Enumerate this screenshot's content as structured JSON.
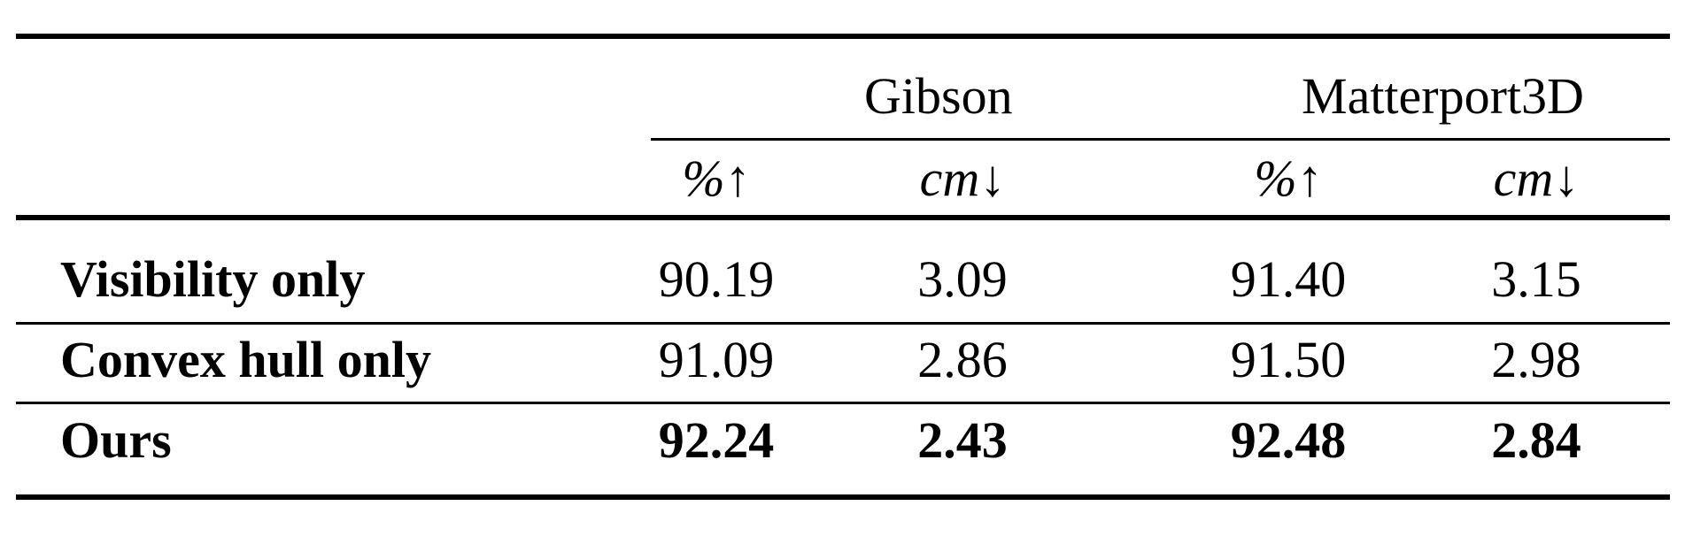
{
  "table": {
    "groups": [
      {
        "label": "Gibson"
      },
      {
        "label": "Matterport3D"
      }
    ],
    "subheaders": [
      {
        "unit": "%",
        "arrow": "↑"
      },
      {
        "unit": "cm",
        "arrow": "↓"
      },
      {
        "unit": "%",
        "arrow": "↑"
      },
      {
        "unit": "cm",
        "arrow": "↓"
      }
    ],
    "rows": [
      {
        "label": "Visibility only",
        "values": [
          "90.19",
          "3.09",
          "91.40",
          "3.15"
        ],
        "bold": false
      },
      {
        "label": "Convex hull only",
        "values": [
          "91.09",
          "2.86",
          "91.50",
          "2.98"
        ],
        "bold": false
      },
      {
        "label": "Ours",
        "values": [
          "92.24",
          "2.43",
          "92.48",
          "2.84"
        ],
        "bold": true
      }
    ]
  }
}
